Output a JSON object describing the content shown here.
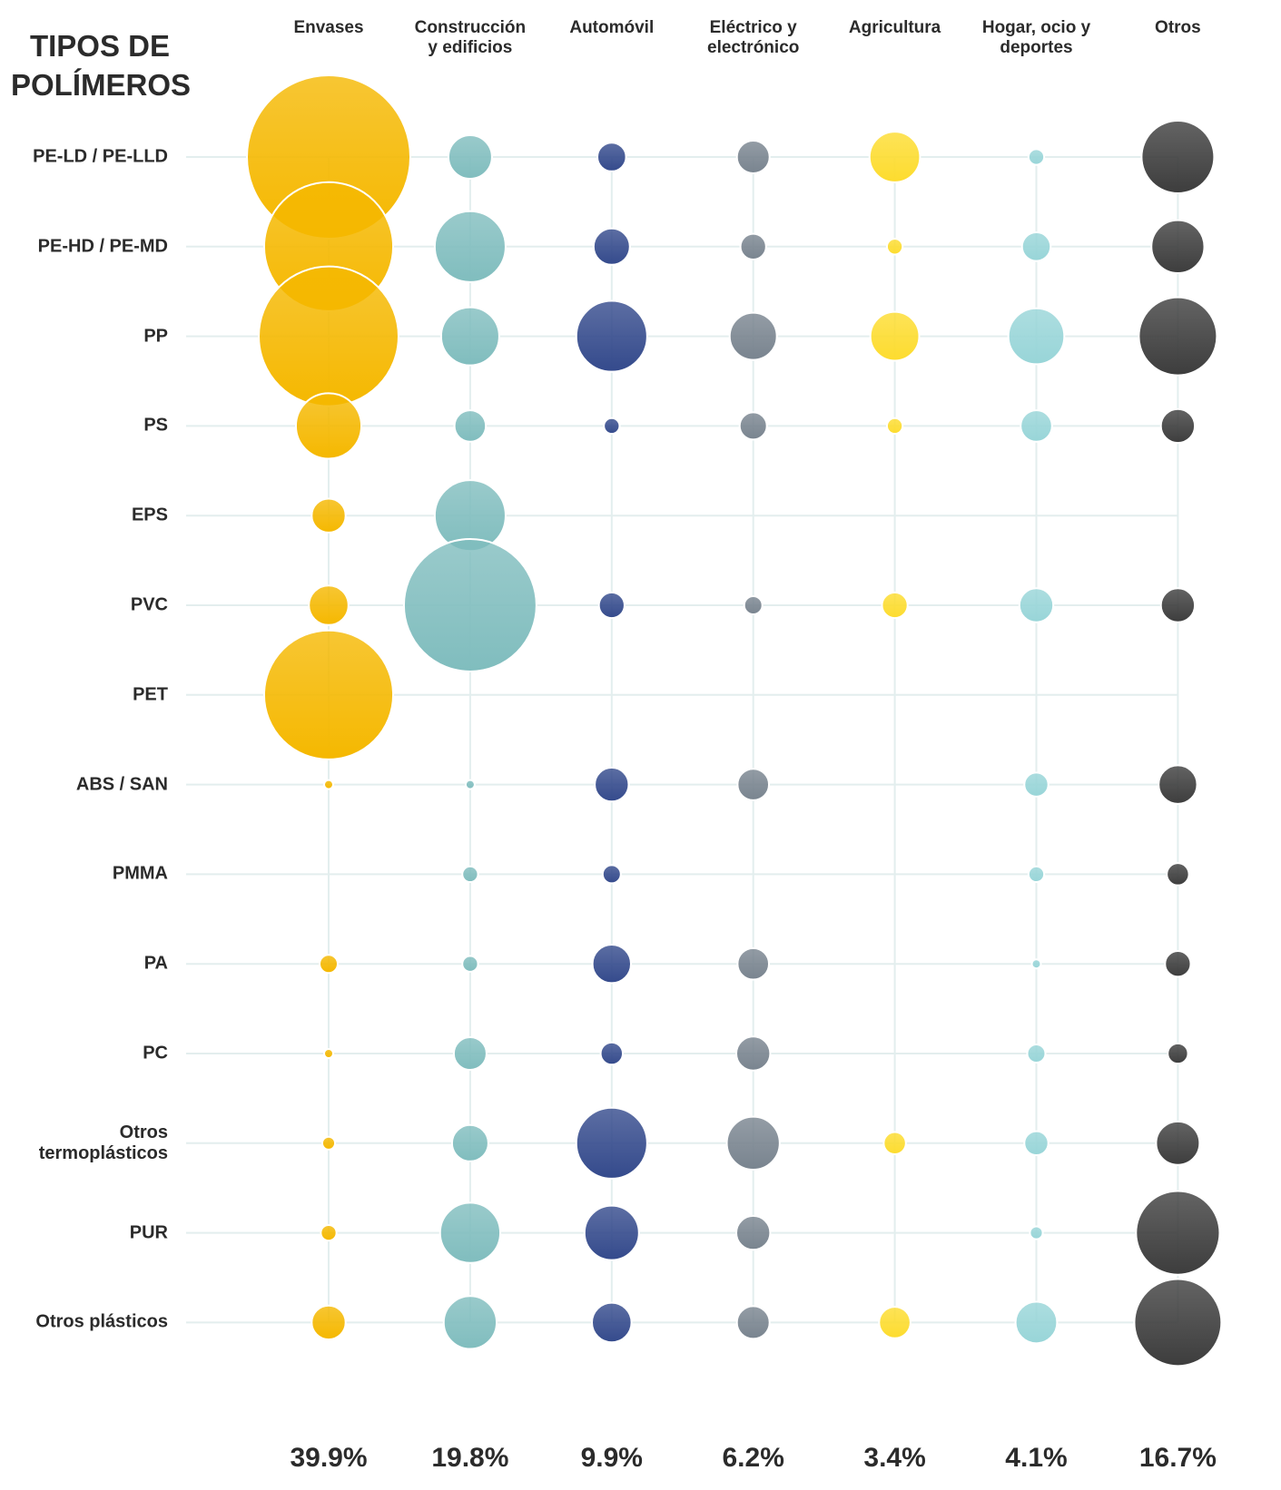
{
  "chart_data": {
    "type": "bubble",
    "title": "TIPOS DE POLÍMEROS",
    "categories": [
      "PE-LD / PE-LLD",
      "PE-HD / PE-MD",
      "PP",
      "PS",
      "EPS",
      "PVC",
      "PET",
      "ABS / SAN",
      "PMMA",
      "PA",
      "PC",
      "Otros termoplásticos",
      "PUR",
      "Otros plásticos"
    ],
    "series": [
      {
        "name": "Envases",
        "color": "#f5b800",
        "values": [
          324,
          202,
          237,
          52,
          14,
          19,
          202,
          1,
          null,
          4,
          1,
          2,
          3,
          14
        ]
      },
      {
        "name": "Construcción y edificios",
        "color": "#80bdbe",
        "values": [
          23,
          61,
          41,
          12,
          61,
          213,
          null,
          1,
          3,
          3,
          13,
          16,
          44,
          34
        ]
      },
      {
        "name": "Automóvil",
        "color": "#344a8c",
        "values": [
          10,
          16,
          61,
          3,
          null,
          8,
          null,
          14,
          4,
          18,
          6,
          61,
          36,
          19
        ]
      },
      {
        "name": "Eléctrico y electrónico",
        "color": "#79848f",
        "values": [
          13,
          8,
          27,
          9,
          null,
          4,
          null,
          12,
          null,
          12,
          14,
          34,
          14,
          13
        ]
      },
      {
        "name": "Agricultura",
        "color": "#fddc2e",
        "values": [
          31,
          3,
          29,
          3,
          null,
          8,
          null,
          null,
          null,
          null,
          null,
          6,
          null,
          12
        ]
      },
      {
        "name": "Hogar, ocio y deportes",
        "color": "#98d5d8",
        "values": [
          3,
          10,
          38,
          12,
          null,
          14,
          null,
          7,
          3,
          1,
          4,
          7,
          2,
          21
        ]
      },
      {
        "name": "Otros",
        "color": "#3d3d3d",
        "values": [
          64,
          34,
          74,
          14,
          null,
          14,
          null,
          18,
          6,
          8,
          5,
          23,
          85,
          92
        ]
      }
    ],
    "column_totals": {
      "values": [
        39.9,
        19.8,
        9.9,
        6.2,
        3.4,
        4.1,
        16.7
      ],
      "value_labels": [
        "39.9%",
        "19.8%",
        "9.9%",
        "6.2%",
        "3.4%",
        "4.1%",
        "16.7%"
      ]
    }
  }
}
